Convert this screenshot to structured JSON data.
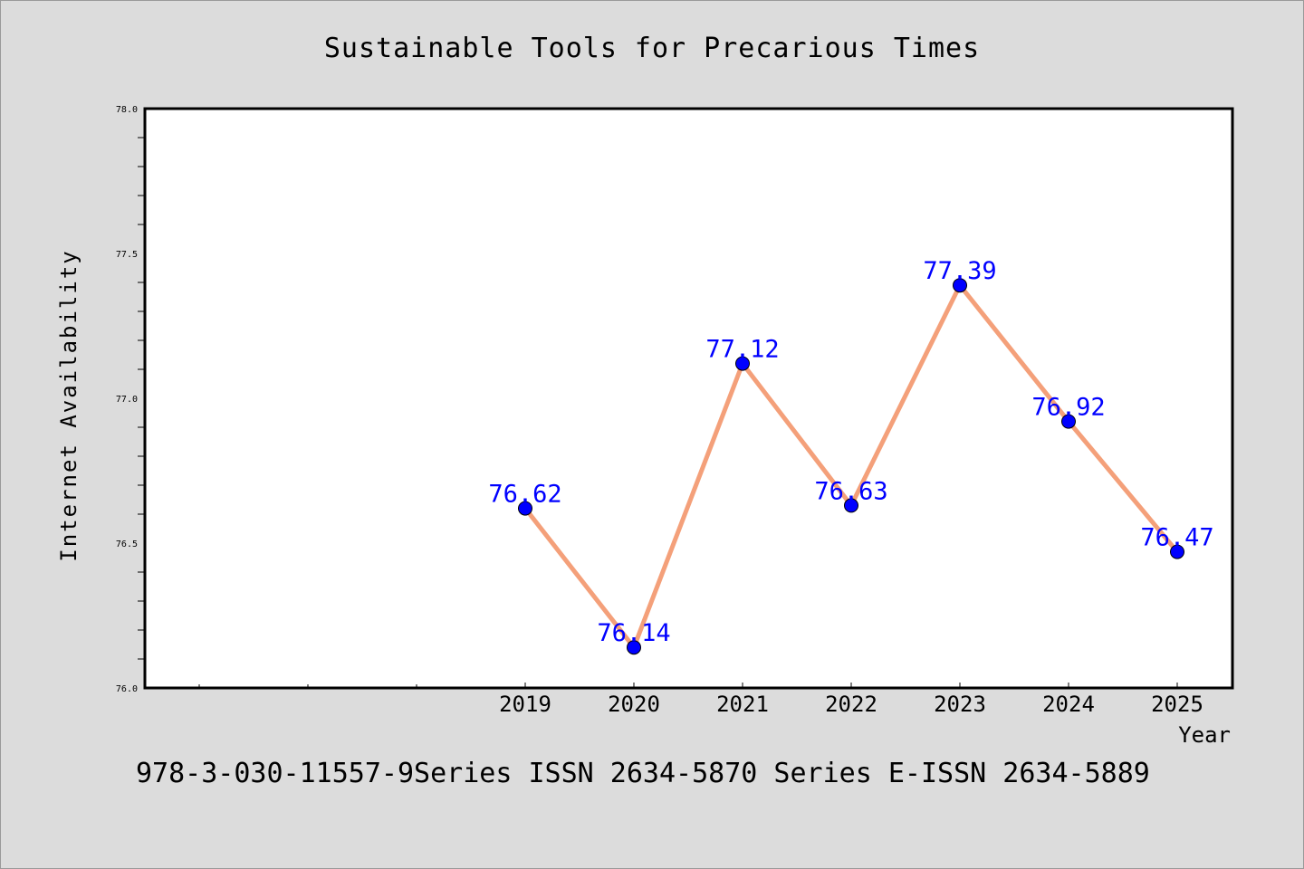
{
  "chart_data": {
    "type": "line",
    "title": "Sustainable Tools for Precarious Times",
    "xlabel": "Year",
    "ylabel": "Internet Availability",
    "x": [
      "2019",
      "2020",
      "2021",
      "2022",
      "2023",
      "2024",
      "2025"
    ],
    "series": [
      {
        "values": [
          76.62,
          76.14,
          77.12,
          76.63,
          77.39,
          76.92,
          76.47
        ],
        "line_color": "#f4a07a",
        "marker_color": "#0000ff"
      }
    ],
    "data_labels": [
      "76.62",
      "76.14",
      "77.12",
      "76.63",
      "77.39",
      "76.92",
      "76.47"
    ],
    "ylim": [
      76.0,
      78.0
    ],
    "yticks": [
      "76.0",
      "76.5",
      "77.0",
      "77.5",
      "78.0"
    ],
    "grid": false,
    "label_color": "#0000ff"
  },
  "footer_text": "978-3-030-11557-9Series ISSN 2634-5870 Series E-ISSN 2634-5889",
  "colors": {
    "background": "#dcdcdc",
    "plot_background": "#ffffff",
    "axis": "#000000"
  }
}
